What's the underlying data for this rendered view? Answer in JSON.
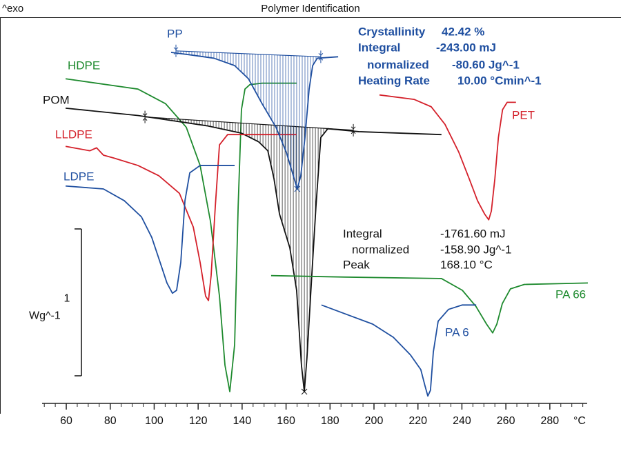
{
  "chart_data": {
    "type": "line",
    "title": "Polymer Identification",
    "corner_label": "^exo",
    "x_unit": "°C",
    "xlim": [
      49,
      297
    ],
    "xticks": [
      60,
      80,
      100,
      120,
      140,
      160,
      180,
      200,
      220,
      240,
      260,
      280
    ],
    "ylim": [
      0,
      2.6
    ],
    "scale_bar": {
      "value": 1,
      "unit": "Wg^-1"
    },
    "series": [
      {
        "name": "HDPE",
        "color": "#1e8a2e",
        "x": [
          59.7,
          92.6,
          105.2,
          114.6,
          120.9,
          125.6,
          129.7,
          132.2,
          134.4,
          136.6,
          138.2,
          139.7,
          141.3,
          143.5,
          149.1,
          164.8
        ],
        "y": [
          2.21,
          2.14,
          2.04,
          1.88,
          1.62,
          1.24,
          0.73,
          0.26,
          0.08,
          0.4,
          1.34,
          2.0,
          2.14,
          2.17,
          2.18,
          2.18
        ]
      },
      {
        "name": "POM",
        "color": "#111111",
        "x": [
          59.7,
          92.6,
          124.0,
          139.7,
          147.6,
          151.7,
          154.5,
          157.0,
          161.7,
          164.8,
          167.0,
          168.3,
          169.5,
          171.7,
          173.6,
          175.8,
          179.0,
          193.1,
          230.7
        ],
        "y": [
          2.01,
          1.96,
          1.89,
          1.84,
          1.78,
          1.72,
          1.53,
          1.29,
          1.06,
          0.77,
          0.26,
          0.08,
          0.31,
          0.87,
          1.34,
          1.81,
          1.87,
          1.85,
          1.83
        ],
        "baseline": {
          "x": [
            95.8,
            190.6
          ],
          "y": [
            1.95,
            1.86
          ]
        }
      },
      {
        "name": "LLDPE",
        "color": "#d4202a",
        "x": [
          59.7,
          70.7,
          73.8,
          76.9,
          81.7,
          92.6,
          102.1,
          111.5,
          117.8,
          120.9,
          123.4,
          124.7,
          125.9,
          127.8,
          129.7,
          133.4,
          164.8
        ],
        "y": [
          1.75,
          1.72,
          1.74,
          1.69,
          1.67,
          1.62,
          1.55,
          1.43,
          1.2,
          0.96,
          0.73,
          0.7,
          0.87,
          1.34,
          1.76,
          1.83,
          1.83
        ]
      },
      {
        "name": "LDPE",
        "color": "#1f4fa0",
        "x": [
          59.7,
          76.9,
          86.4,
          94.2,
          98.9,
          102.7,
          105.8,
          108.3,
          110.2,
          112.1,
          114.0,
          116.2,
          120.9,
          136.6
        ],
        "y": [
          1.48,
          1.46,
          1.38,
          1.27,
          1.13,
          0.96,
          0.82,
          0.75,
          0.77,
          0.96,
          1.38,
          1.57,
          1.62,
          1.62
        ]
      },
      {
        "name": "PP",
        "color": "#1f4fa0",
        "x": [
          107.7,
          117.8,
          127.2,
          136.6,
          142.9,
          149.1,
          155.4,
          160.1,
          163.3,
          165.1,
          166.7,
          168.6,
          170.5,
          172.1,
          174.2,
          183.7
        ],
        "y": [
          2.39,
          2.37,
          2.35,
          2.3,
          2.21,
          2.04,
          1.88,
          1.71,
          1.55,
          1.46,
          1.55,
          1.81,
          2.14,
          2.3,
          2.35,
          2.36
        ],
        "baseline": {
          "x": [
            109.9,
            175.8
          ],
          "y": [
            2.4,
            2.36
          ]
        }
      },
      {
        "name": "PET",
        "color": "#d4202a",
        "x": [
          202.5,
          218.2,
          226.0,
          232.3,
          238.6,
          243.3,
          247.1,
          250.3,
          252.2,
          253.4,
          255.0,
          256.6,
          258.5,
          260.6,
          264.6
        ],
        "y": [
          2.1,
          2.07,
          2.02,
          1.9,
          1.71,
          1.53,
          1.38,
          1.29,
          1.25,
          1.31,
          1.53,
          1.81,
          2.0,
          2.05,
          2.05
        ]
      },
      {
        "name": "PA 66",
        "color": "#1e8a2e",
        "x": [
          153.2,
          186.8,
          230.7,
          240.2,
          246.4,
          251.2,
          254.0,
          255.9,
          258.4,
          262.1,
          268.4,
          297.3
        ],
        "y": [
          0.87,
          0.86,
          0.85,
          0.77,
          0.66,
          0.54,
          0.48,
          0.54,
          0.68,
          0.78,
          0.81,
          0.82
        ]
      },
      {
        "name": "PA 6",
        "color": "#1f4fa0",
        "x": [
          176.1,
          186.8,
          199.4,
          208.8,
          216.6,
          221.3,
          223.2,
          224.5,
          225.7,
          227.0,
          229.2,
          233.9,
          240.2,
          246.5
        ],
        "y": [
          0.67,
          0.61,
          0.54,
          0.45,
          0.33,
          0.23,
          0.12,
          0.05,
          0.09,
          0.35,
          0.56,
          0.64,
          0.67,
          0.67
        ]
      }
    ],
    "annotations": [
      {
        "color": "#1f4fa0",
        "rows": [
          [
            "Crystallinity",
            "42.42 %"
          ],
          [
            "Integral",
            "-243.00 mJ"
          ],
          [
            "normalized",
            "-80.60 Jg^-1"
          ],
          [
            "Heating Rate",
            "10.00 °Cmin^-1"
          ]
        ]
      },
      {
        "color": "#111111",
        "rows": [
          [
            "Integral",
            "-1761.60 mJ"
          ],
          [
            "normalized",
            "-158.90 Jg^-1"
          ],
          [
            "Peak",
            "168.10 °C"
          ]
        ]
      }
    ]
  }
}
